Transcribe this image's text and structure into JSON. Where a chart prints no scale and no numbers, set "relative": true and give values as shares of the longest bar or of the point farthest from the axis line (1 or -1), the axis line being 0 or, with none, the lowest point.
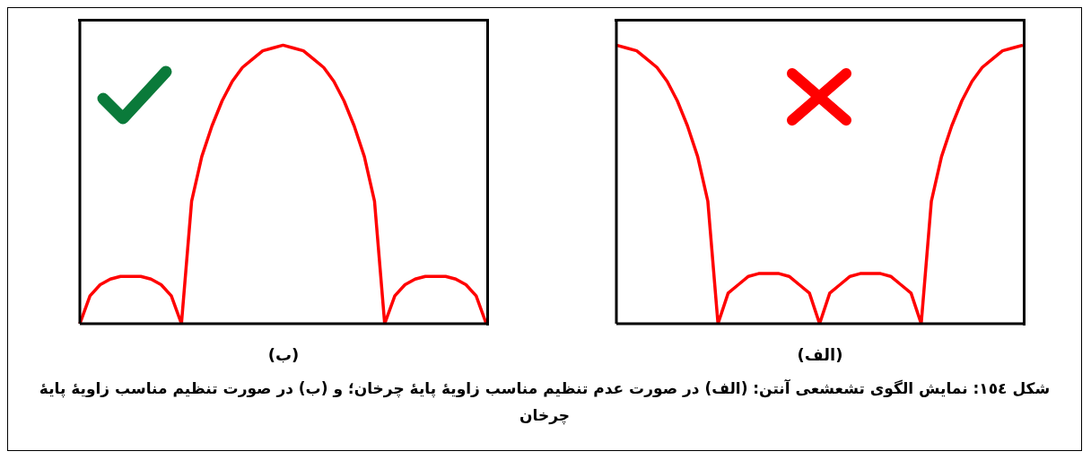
{
  "chart_data": [
    {
      "type": "line",
      "relative": true,
      "xlabel": "(الف)",
      "categories": [
        null,
        null,
        null,
        null,
        null,
        null,
        null,
        null,
        null,
        null,
        null,
        null,
        null,
        null,
        null,
        null,
        null,
        null,
        null,
        null,
        null,
        null,
        null,
        null,
        null,
        null,
        null,
        null,
        null,
        null,
        null,
        null,
        null,
        null,
        null,
        null,
        null,
        null,
        null,
        null,
        null
      ],
      "series": [
        {
          "color": "#ff0000",
          "values": [
            1,
            0.99,
            0.98,
            0.95,
            0.92,
            0.87,
            0.8,
            0.71,
            0.6,
            0.44,
            0,
            0.11,
            0.14,
            0.17,
            0.18,
            0.18,
            0.18,
            0.17,
            0.14,
            0.11,
            0,
            0.11,
            0.14,
            0.17,
            0.18,
            0.18,
            0.18,
            0.17,
            0.14,
            0.11,
            0,
            0.44,
            0.6,
            0.71,
            0.8,
            0.87,
            0.92,
            0.95,
            0.98,
            0.99,
            1
          ]
        }
      ],
      "annotations": [
        "شکل ١٥٤: نمایش الگوی تشعشعی آنتن: (الف) در صورت عدم تنظیم مناسب زاویهٔ پایهٔ چرخان؛ و (ب) در صورت تنظیم مناسب زاویهٔ پایهٔ چرخان"
      ]
    },
    {
      "type": "line",
      "relative": true,
      "xlabel": "(ب)",
      "categories": [
        null,
        null,
        null,
        null,
        null,
        null,
        null,
        null,
        null,
        null,
        null,
        null,
        null,
        null,
        null,
        null,
        null,
        null,
        null,
        null,
        null,
        null,
        null,
        null,
        null,
        null,
        null,
        null,
        null,
        null,
        null,
        null,
        null,
        null,
        null,
        null,
        null,
        null,
        null,
        null,
        null
      ],
      "series": [
        {
          "color": "#ff0000",
          "values": [
            0,
            0.1,
            0.14,
            0.16,
            0.17,
            0.17,
            0.17,
            0.16,
            0.14,
            0.1,
            0,
            0.44,
            0.6,
            0.71,
            0.8,
            0.87,
            0.92,
            0.95,
            0.98,
            0.99,
            1,
            0.99,
            0.98,
            0.95,
            0.92,
            0.87,
            0.8,
            0.71,
            0.6,
            0.44,
            0,
            0.1,
            0.14,
            0.16,
            0.17,
            0.17,
            0.17,
            0.16,
            0.14,
            0.1,
            0
          ]
        }
      ]
    }
  ]
}
